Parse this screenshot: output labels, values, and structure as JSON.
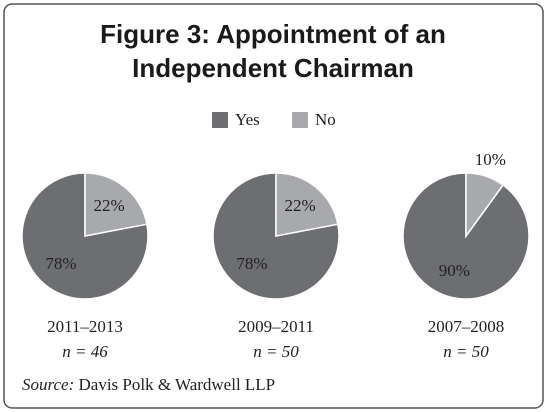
{
  "title": [
    "Figure 3: Appointment of an",
    "Independent Chairman"
  ],
  "source_label": "Source:",
  "source": "Davis Polk & Wardwell LLP",
  "chart_data": [
    {
      "type": "pie",
      "title": "2011–2013",
      "subtitle": "n = 46",
      "categories": [
        "Yes",
        "No"
      ],
      "values": [
        78,
        22
      ],
      "value_labels": [
        "78%",
        "22%"
      ],
      "colors": [
        "#6d6e71",
        "#a7a9ac"
      ],
      "legend": true
    },
    {
      "type": "pie",
      "title": "2009–2011",
      "subtitle": "n = 50",
      "categories": [
        "Yes",
        "No"
      ],
      "values": [
        78,
        22
      ],
      "value_labels": [
        "78%",
        "22%"
      ],
      "colors": [
        "#6d6e71",
        "#a7a9ac"
      ]
    },
    {
      "type": "pie",
      "title": "2007–2008",
      "subtitle": "n = 50",
      "categories": [
        "Yes",
        "No"
      ],
      "values": [
        90,
        10
      ],
      "value_labels": [
        "90%",
        "10%"
      ],
      "colors": [
        "#6d6e71",
        "#a7a9ac"
      ]
    }
  ]
}
